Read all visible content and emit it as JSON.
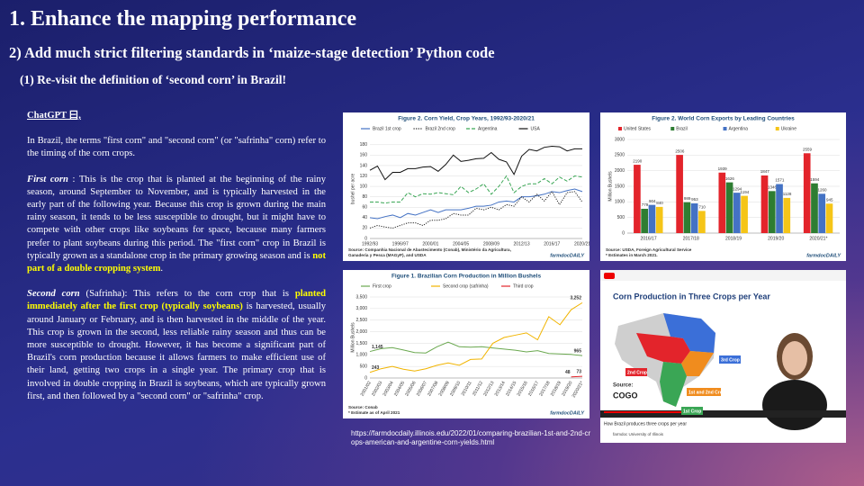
{
  "title": "1. Enhance the mapping performance",
  "subtitle": "2) Add much strict filtering standards in ‘maize-stage detection’ Python code",
  "section": "(1) Re-visit the definition of ‘second corn’ in Brazil!",
  "text": {
    "heading": "ChatGPT 曰,",
    "paragraphs": [
      [
        {
          "text": "In Brazil, the terms \"first corn\" and \"second corn\" (or \"safrinha\" corn) refer to the timing of the corn crops.",
          "style": "plain"
        }
      ],
      [
        {
          "text": "First corn",
          "style": "term"
        },
        {
          "text": " : This is the crop that is planted at the beginning of the rainy season, around September to November, and is typically harvested in the early part of the following year. Because this crop is grown during the main rainy season, it tends to be less susceptible to drought, but it might have to compete with other crops like soybeans for space, because many farmers prefer to plant soybeans during this period. The \"first corn\" crop in Brazil is typically grown as a standalone crop in the primary growing season and is ",
          "style": "plain"
        },
        {
          "text": "not part of a double cropping system",
          "style": "highlight"
        },
        {
          "text": ".",
          "style": "plain"
        }
      ],
      [
        {
          "text": "Second corn",
          "style": "term"
        },
        {
          "text": " (Safrinha): This refers to the corn crop that is ",
          "style": "plain"
        },
        {
          "text": "planted immediately after the first crop (typically soybeans)",
          "style": "highlight"
        },
        {
          "text": " is harvested, usually around January or February, and is then harvested in the middle of the year. This crop is grown in the second, less reliable rainy season and thus can be more susceptible to drought. However, it has become a significant part of Brazil's corn production because it allows farmers to make efficient use of their land, getting two crops in a single year. The primary crop that is involved in double cropping in Brazil is soybeans, which are typically grown first, and then followed by a \"second corn\" or \"safrinha\" crop.",
          "style": "plain"
        }
      ]
    ]
  },
  "chart_data": [
    {
      "type": "line",
      "title": "Figure 2. Corn Yield, Crop Years, 1992/93-2020/21",
      "ylabel": "bushel per acre",
      "categories": [
        "1992/93",
        null,
        null,
        null,
        "1996/97",
        null,
        null,
        null,
        "2000/01",
        null,
        null,
        null,
        "2004/05",
        null,
        null,
        null,
        "2008/09",
        null,
        null,
        null,
        "2012/13",
        null,
        null,
        null,
        "2016/17",
        null,
        null,
        null,
        "2020/21"
      ],
      "series": [
        {
          "name": "Brazil 1st crop",
          "color": "#4472c4",
          "dash": "solid",
          "values": [
            40,
            38,
            42,
            45,
            40,
            48,
            45,
            50,
            55,
            50,
            55,
            55,
            55,
            58,
            62,
            62,
            64,
            70,
            72,
            70,
            80,
            80,
            82,
            85,
            90,
            88,
            92,
            95,
            90
          ]
        },
        {
          "name": "Brazil 2nd crop",
          "color": "#222222",
          "dash": "dotted",
          "values": [
            20,
            25,
            22,
            20,
            25,
            30,
            30,
            25,
            35,
            35,
            38,
            48,
            45,
            45,
            58,
            55,
            60,
            55,
            65,
            62,
            80,
            70,
            85,
            72,
            90,
            65,
            88,
            90,
            70
          ]
        },
        {
          "name": "Argentina",
          "color": "#3aa655",
          "dash": "dashed",
          "values": [
            70,
            70,
            68,
            70,
            70,
            88,
            80,
            86,
            85,
            88,
            86,
            84,
            100,
            88,
            95,
            105,
            85,
            100,
            120,
            88,
            100,
            105,
            105,
            115,
            105,
            118,
            110,
            120,
            118
          ]
        },
        {
          "name": "USA",
          "color": "#111111",
          "dash": "solid",
          "values": [
            131,
            139,
            113,
            127,
            127,
            134,
            134,
            137,
            138,
            129,
            142,
            160,
            148,
            150,
            153,
            154,
            165,
            152,
            147,
            123,
            158,
            171,
            168,
            175,
            177,
            176,
            168,
            172,
            172
          ]
        }
      ],
      "ylim": [
        0,
        190
      ],
      "yticks": [
        0,
        20,
        40,
        60,
        80,
        100,
        120,
        140,
        160,
        180
      ],
      "grid": true,
      "notes": [
        "Source: Companhia Nacional de Abastecimento (Conab), Ministério da Agricultura,",
        "Ganaderia y Pesca (MAGyP), and USDA"
      ],
      "logo": "farmdocDAILY"
    },
    {
      "type": "bar",
      "title": "Figure 2. World Corn Exports by Leading Countries",
      "ylabel": "Million Bushels",
      "categories": [
        "2016/17",
        "2017/18",
        "2018/19",
        "2019/20",
        "2020/21*"
      ],
      "series": [
        {
          "name": "United States",
          "color": "#e3242b",
          "values": [
            2190,
            2506,
            1939,
            1847,
            2559
          ]
        },
        {
          "name": "Brazil",
          "color": "#2e7d32",
          "values": [
            779,
            989,
            1626,
            1346,
            1594
          ]
        },
        {
          "name": "Argentina",
          "color": "#4472c4",
          "values": [
            904,
            953,
            1294,
            1571,
            1260
          ]
        },
        {
          "name": "Ukraine",
          "color": "#f5c518",
          "values": [
            840,
            710,
            1194,
            1128,
            945
          ]
        }
      ],
      "ylim": [
        0,
        3000
      ],
      "yticks": [
        0,
        500,
        1000,
        1500,
        2000,
        2500,
        3000
      ],
      "grid": true,
      "notes": [
        "Source:  USDA, Foreign Agricultural Service",
        "* Estimates in March 2021."
      ],
      "logo": "farmdocDAILY"
    },
    {
      "type": "line",
      "title": "Figure 1.  Brazilian Corn Production in Million Bushels",
      "ylabel": "Million Bushels",
      "categories": [
        "2001/02",
        "2002/03",
        "2003/04",
        "2004/05",
        "2005/06",
        "2006/07",
        "2007/08",
        "2008/09",
        "2009/10",
        "2010/11",
        "2011/12",
        "2012/13",
        "2013/14",
        "2014/15",
        "2015/16",
        "2016/17",
        "2017/18",
        "2018/19",
        "2019/20",
        "2020/21*"
      ],
      "series": [
        {
          "name": "First crop",
          "color": "#6aa84f",
          "dash": "solid",
          "values": [
            1145,
            1270,
            1310,
            1210,
            1100,
            1080,
            1350,
            1550,
            1350,
            1330,
            1350,
            1300,
            1250,
            1200,
            1130,
            1180,
            1060,
            1040,
            1020,
            965
          ],
          "value_labels": [
            "1,145",
            null,
            null,
            null,
            null,
            null,
            null,
            null,
            null,
            null,
            null,
            null,
            null,
            null,
            null,
            null,
            null,
            null,
            null,
            "965"
          ]
        },
        {
          "name": "Second crop (safrinha)",
          "color": "#f1b400",
          "dash": "solid",
          "values": [
            243,
            400,
            500,
            380,
            300,
            400,
            550,
            650,
            550,
            800,
            820,
            1500,
            1750,
            1850,
            1950,
            1650,
            2650,
            2300,
            2950,
            3252
          ],
          "value_labels": [
            "243",
            null,
            null,
            null,
            null,
            null,
            null,
            null,
            null,
            null,
            null,
            null,
            null,
            null,
            null,
            null,
            null,
            null,
            null,
            "3,252"
          ]
        },
        {
          "name": "Third crop",
          "color": "#e3242b",
          "dash": "solid",
          "values": [
            null,
            null,
            null,
            null,
            null,
            null,
            null,
            null,
            null,
            null,
            null,
            null,
            null,
            null,
            null,
            null,
            null,
            null,
            48,
            73
          ],
          "value_labels": [
            null,
            null,
            null,
            null,
            null,
            null,
            null,
            null,
            null,
            null,
            null,
            null,
            null,
            null,
            null,
            null,
            null,
            null,
            "48",
            "73"
          ]
        }
      ],
      "ylim": [
        0,
        3500
      ],
      "yticks": [
        0,
        500,
        {
          "value": 1000,
          "label": "1,000"
        },
        {
          "value": 1500,
          "label": "1,500"
        },
        {
          "value": 2000,
          "label": "2,000"
        },
        {
          "value": 2500,
          "label": "2,500"
        },
        {
          "value": 3000,
          "label": "3,000"
        },
        {
          "value": 3500,
          "label": "3,500"
        }
      ],
      "grid": true,
      "notes": [
        "Source: Conab",
        "* Estimate as of April 2021"
      ],
      "logo": "farmdocDAILY"
    }
  ],
  "video": {
    "title": "Corn Production in Three Crops per Year",
    "labels": [
      "2nd Crop",
      "3rd Crop",
      "1st and 2nd Crops",
      "1st Crop"
    ],
    "source": "Source:",
    "logo": "COGO",
    "caption": "How Brazil produces three crops per year",
    "channel": "farmdoc University of Illinois"
  },
  "url": "https://farmdocdaily.illinois.edu/2022/01/comparing-brazilian-1st-and-2nd-crops-american-and-argentine-corn-yields.html"
}
